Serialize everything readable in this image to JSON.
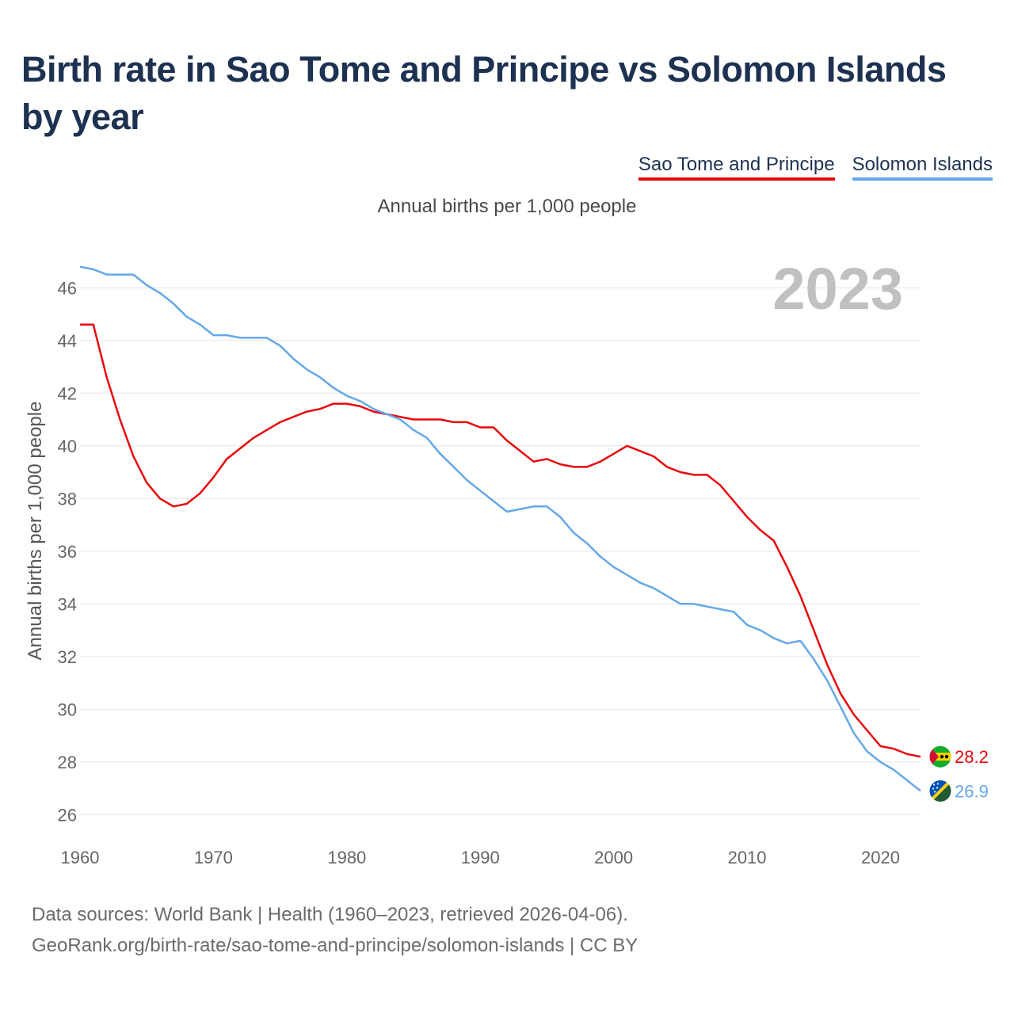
{
  "title": "Birth rate in Sao Tome and Principe vs Solomon Islands by year",
  "legend": [
    "Sao Tome and Principe",
    "Solomon Islands"
  ],
  "subtitle": "Annual births per 1,000 people",
  "year_label": "2023",
  "footer": {
    "line1": "Data sources: World Bank | Health (1960–2023, retrieved 2026-04-06).",
    "line2": "GeoRank.org/birth-rate/sao-tome-and-principe/solomon-islands | CC BY"
  },
  "chart_data": {
    "type": "line",
    "title": "Birth rate in Sao Tome and Principe vs Solomon Islands by year",
    "xlabel": "",
    "ylabel": "Annual births per 1,000 people",
    "xlim": [
      1960,
      2023
    ],
    "ylim": [
      25.5,
      47
    ],
    "x_ticks": [
      1960,
      1970,
      1980,
      1990,
      2000,
      2010,
      2020
    ],
    "y_ticks": [
      26,
      28,
      30,
      32,
      34,
      36,
      38,
      40,
      42,
      44,
      46
    ],
    "grid": true,
    "x": [
      1960,
      1961,
      1962,
      1963,
      1964,
      1965,
      1966,
      1967,
      1968,
      1969,
      1970,
      1971,
      1972,
      1973,
      1974,
      1975,
      1976,
      1977,
      1978,
      1979,
      1980,
      1981,
      1982,
      1983,
      1984,
      1985,
      1986,
      1987,
      1988,
      1989,
      1990,
      1991,
      1992,
      1993,
      1994,
      1995,
      1996,
      1997,
      1998,
      1999,
      2000,
      2001,
      2002,
      2003,
      2004,
      2005,
      2006,
      2007,
      2008,
      2009,
      2010,
      2011,
      2012,
      2013,
      2014,
      2015,
      2016,
      2017,
      2018,
      2019,
      2020,
      2021,
      2022,
      2023
    ],
    "series": [
      {
        "name": "Sao Tome and Principe",
        "color": "#e8090d",
        "flag": "sao-tome-and-principe-flag-icon",
        "end_label": "28.2",
        "values": [
          44.6,
          44.6,
          42.6,
          41.0,
          39.6,
          38.6,
          38.0,
          37.7,
          37.8,
          38.2,
          38.8,
          39.5,
          39.9,
          40.3,
          40.6,
          40.9,
          41.1,
          41.3,
          41.4,
          41.6,
          41.6,
          41.5,
          41.3,
          41.2,
          41.1,
          41.0,
          41.0,
          41.0,
          40.9,
          40.9,
          40.7,
          40.7,
          40.2,
          39.8,
          39.4,
          39.5,
          39.3,
          39.2,
          39.2,
          39.4,
          39.7,
          40.0,
          39.8,
          39.6,
          39.2,
          39.0,
          38.9,
          38.9,
          38.5,
          37.9,
          37.3,
          36.8,
          36.4,
          35.4,
          34.3,
          33.0,
          31.7,
          30.6,
          29.8,
          29.2,
          28.6,
          28.5,
          28.3,
          28.2
        ]
      },
      {
        "name": "Solomon Islands",
        "color": "#64a8e8",
        "flag": "solomon-islands-flag-icon",
        "end_label": "26.9",
        "values": [
          46.8,
          46.7,
          46.5,
          46.5,
          46.5,
          46.1,
          45.8,
          45.4,
          44.9,
          44.6,
          44.2,
          44.2,
          44.1,
          44.1,
          44.1,
          43.8,
          43.3,
          42.9,
          42.6,
          42.2,
          41.9,
          41.7,
          41.4,
          41.2,
          41.0,
          40.6,
          40.3,
          39.7,
          39.2,
          38.7,
          38.3,
          37.9,
          37.5,
          37.6,
          37.7,
          37.7,
          37.3,
          36.7,
          36.3,
          35.8,
          35.4,
          35.1,
          34.8,
          34.6,
          34.3,
          34.0,
          34.0,
          33.9,
          33.8,
          33.7,
          33.2,
          33.0,
          32.7,
          32.5,
          32.6,
          31.9,
          31.1,
          30.1,
          29.1,
          28.4,
          28.0,
          27.7,
          27.3,
          26.9
        ]
      }
    ]
  }
}
